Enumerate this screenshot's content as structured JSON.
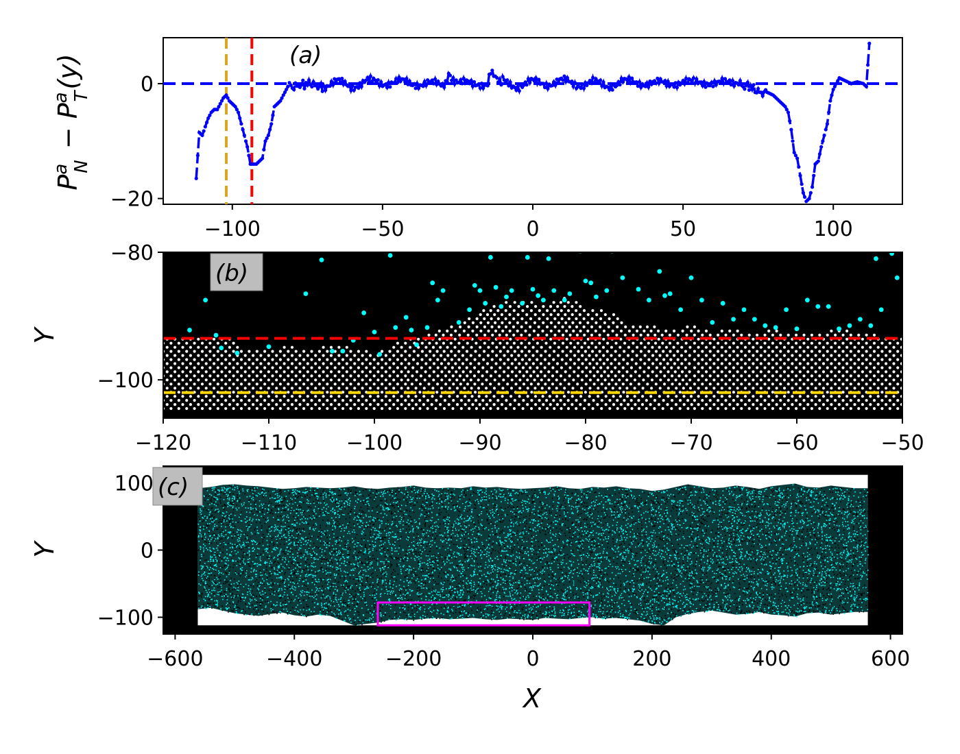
{
  "chart_data": [
    {
      "panel": "a",
      "type": "line",
      "panel_label": "(a)",
      "ylabel": "P_N^a − P_T^a(y)",
      "xlabel": "",
      "xlim": [
        -123,
        123
      ],
      "ylim": [
        -21,
        8
      ],
      "xticks": [
        -100,
        -50,
        0,
        50,
        100
      ],
      "yticks": [
        -20,
        0
      ],
      "grid": false,
      "series": [
        {
          "color": "#0000ff",
          "style": "dashed-with-dots",
          "x": [
            -112,
            -111,
            -110,
            -109,
            -108,
            -107,
            -106,
            -105,
            -104,
            -103,
            -102,
            -101,
            -100,
            -99,
            -98,
            -97,
            -96,
            -95,
            -94,
            -93,
            -92,
            -91,
            -90,
            -89,
            -88,
            -87,
            -86,
            -85,
            -84,
            -83,
            -82,
            -81,
            -80,
            -78,
            -76,
            -74,
            -72,
            -70,
            -65,
            -60,
            -55,
            -50,
            -45,
            -40,
            -35,
            -30,
            -28,
            -25,
            -20,
            -15,
            -14,
            -10,
            -5,
            0,
            5,
            10,
            15,
            20,
            25,
            30,
            35,
            40,
            45,
            50,
            55,
            60,
            65,
            68,
            70,
            72,
            74,
            76,
            78,
            80,
            82,
            84,
            85,
            86,
            87,
            88,
            89,
            90,
            91,
            92,
            93,
            94,
            95,
            96,
            97,
            98,
            99,
            100,
            101,
            102,
            104,
            106,
            108,
            110,
            111,
            112
          ],
          "y": [
            -16.5,
            -8.5,
            -9,
            -7.5,
            -6,
            -5,
            -4.5,
            -4.5,
            -3.5,
            -2.5,
            -2,
            -3,
            -3.5,
            -4,
            -5,
            -7,
            -9,
            -11,
            -14,
            -14,
            -14,
            -13.5,
            -13,
            -10,
            -9,
            -7,
            -4,
            -3.5,
            -3,
            -2,
            -1,
            0,
            -0.5,
            -0.3,
            0,
            0.2,
            -0.3,
            -0.5,
            0.3,
            -0.5,
            0.5,
            0,
            0.5,
            -0.2,
            0.3,
            -0.5,
            1.5,
            0.5,
            -0.3,
            0.2,
            1.8,
            0.5,
            -0.5,
            0.3,
            0,
            0.5,
            -0.2,
            0.3,
            -0.5,
            0.5,
            0,
            0.3,
            -0.2,
            0.5,
            0,
            0.3,
            0,
            0.5,
            -0.5,
            -0.3,
            -1,
            -1.5,
            -1.5,
            -2,
            -3,
            -4,
            -5,
            -8,
            -12,
            -13,
            -16,
            -19,
            -20.5,
            -20,
            -18,
            -14,
            -13.5,
            -11,
            -9,
            -7,
            -3,
            -1,
            0,
            1,
            0.5,
            0,
            0.3,
            0,
            -0.5,
            7
          ]
        }
      ],
      "reference_lines": [
        {
          "orientation": "horizontal",
          "value": 0,
          "color": "#0000ff",
          "style": "dashed"
        },
        {
          "orientation": "vertical",
          "value": -102,
          "color": "#daa520",
          "style": "dashed"
        },
        {
          "orientation": "vertical",
          "value": -93.5,
          "color": "#ff0000",
          "style": "dashed"
        }
      ]
    },
    {
      "panel": "b",
      "type": "scatter",
      "panel_label": "(b)",
      "ylabel": "Y",
      "xlabel": "",
      "xlim": [
        -120,
        -50
      ],
      "ylim": [
        -106,
        -80
      ],
      "xticks": [
        -120,
        -110,
        -100,
        -90,
        -80,
        -70,
        -60,
        -50
      ],
      "yticks": [
        -100,
        -80
      ],
      "background": "#000000",
      "grid": false,
      "surface_profile": {
        "x": [
          -120,
          -117,
          -114,
          -112,
          -110,
          -108,
          -106,
          -104,
          -102,
          -100,
          -98,
          -97,
          -96,
          -94,
          -92,
          -90,
          -88,
          -86,
          -84,
          -82,
          -80,
          -78,
          -76,
          -74,
          -72,
          -70,
          -68,
          -66,
          -64,
          -62,
          -60,
          -58,
          -56,
          -54,
          -52,
          -50
        ],
        "y": [
          -93.2,
          -93.2,
          -93,
          -95.5,
          -95,
          -94.8,
          -95.2,
          -94.5,
          -95,
          -95.8,
          -94.5,
          -93,
          -93.5,
          -92.5,
          -91,
          -89,
          -88,
          -87.5,
          -88,
          -87,
          -88.5,
          -89,
          -91,
          -91.5,
          -92,
          -91.5,
          -92.5,
          -92,
          -92.8,
          -92,
          -93,
          -92.5,
          -92,
          -92.8,
          -93,
          -93
        ]
      },
      "crystal_bottom": -104.5,
      "series": [
        {
          "name_visible": false,
          "color": "#ffffff",
          "marker": "circle",
          "description_hidden": true
        },
        {
          "name_visible": false,
          "color": "#00ffff",
          "marker": "circle",
          "x": [
            -117.5,
            -116,
            -115,
            -114.5,
            -113,
            -110,
            -106.5,
            -105,
            -103,
            -101,
            -99.5,
            -98.5,
            -97,
            -96.5,
            -95,
            -94.5,
            -94,
            -93.5,
            -92,
            -91,
            -90,
            -89.5,
            -89,
            -88.5,
            -88,
            -87.5,
            -87,
            -86,
            -85.5,
            -85,
            -84,
            -83.5,
            -83,
            -82,
            -81.5,
            -80.5,
            -80,
            -79,
            -78,
            -77.5,
            -76.5,
            -75,
            -74,
            -73,
            -72,
            -71,
            -70,
            -69,
            -68,
            -67,
            -66,
            -65,
            -64,
            -63,
            -62,
            -61,
            -60,
            -59,
            -58,
            -57,
            -56,
            -55,
            -54,
            -53,
            -52.5,
            -52,
            -51,
            -50.5,
            -104,
            -102,
            -100,
            -98,
            -96,
            -90.5,
            -84.5,
            -79.5,
            -72.5
          ],
          "y": [
            -92.2,
            -87.5,
            -93,
            -95,
            -95.8,
            -94.8,
            -86.5,
            -81.2,
            -95.5,
            -89.5,
            -96,
            -80.5,
            -90.2,
            -92.2,
            -91.8,
            -84.8,
            -87.5,
            -86,
            -91,
            -89,
            -86,
            -88,
            -80.8,
            -85.5,
            -88.5,
            -87,
            -86,
            -88,
            -80.8,
            -85.8,
            -87.5,
            -81,
            -86,
            -87.5,
            -86.5,
            -79.8,
            -84.5,
            -87,
            -86,
            -79.8,
            -84,
            -85.8,
            -87.5,
            -83,
            -86.5,
            -89,
            -84,
            -87.5,
            -91,
            -88,
            -90.5,
            -89,
            -90.5,
            -91.5,
            -91.8,
            -89,
            -92,
            -87.5,
            -88.5,
            -88.5,
            -92,
            -91.5,
            -90.5,
            -91.5,
            -81,
            -89,
            -80.2,
            -84,
            -95.5,
            -93.8,
            -92.5,
            -91.8,
            -94.5,
            -85.2,
            -86.8,
            -84.8,
            -86.8
          ]
        }
      ],
      "reference_lines": [
        {
          "orientation": "horizontal",
          "value": -93.5,
          "color": "#ff0000",
          "style": "dashed"
        },
        {
          "orientation": "horizontal",
          "value": -102,
          "color": "#ffd700",
          "style": "dashed"
        }
      ]
    },
    {
      "panel": "c",
      "type": "scatter",
      "panel_label": "(c)",
      "ylabel": "Y",
      "xlabel": "X",
      "xlim": [
        -620,
        620
      ],
      "ylim": [
        -125,
        125
      ],
      "xticks": [
        -600,
        -400,
        -200,
        0,
        200,
        400,
        600
      ],
      "yticks": [
        -100,
        0,
        100
      ],
      "background": "#000000",
      "grid": false,
      "slab": {
        "x_range": [
          -562,
          562
        ],
        "y_range": [
          -112,
          112
        ]
      },
      "top_surface": {
        "x": [
          -562,
          -540,
          -520,
          -500,
          -480,
          -460,
          -440,
          -420,
          -400,
          -380,
          -360,
          -340,
          -320,
          -300,
          -280,
          -260,
          -240,
          -220,
          -200,
          -180,
          -160,
          -140,
          -120,
          -100,
          -80,
          -60,
          -40,
          -20,
          0,
          20,
          40,
          60,
          80,
          100,
          120,
          140,
          160,
          180,
          200,
          220,
          240,
          260,
          280,
          300,
          320,
          340,
          360,
          380,
          400,
          420,
          440,
          460,
          480,
          500,
          520,
          540,
          562
        ],
        "y": [
          92,
          94,
          97,
          98,
          96,
          95,
          93,
          91,
          92,
          94,
          93,
          92,
          93,
          95,
          92,
          91,
          93,
          94,
          96,
          93,
          92,
          93,
          92,
          95,
          93,
          94,
          92,
          91,
          92,
          93,
          95,
          92,
          91,
          94,
          93,
          95,
          92,
          91,
          88,
          90,
          94,
          98,
          95,
          92,
          93,
          96,
          94,
          91,
          95,
          97,
          99,
          94,
          93,
          96,
          94,
          92,
          92
        ]
      },
      "bottom_surface": {
        "x": [
          -562,
          -540,
          -520,
          -500,
          -480,
          -460,
          -440,
          -420,
          -400,
          -380,
          -360,
          -340,
          -320,
          -300,
          -280,
          -260,
          -240,
          -220,
          -200,
          -180,
          -160,
          -140,
          -120,
          -100,
          -80,
          -60,
          -40,
          -20,
          0,
          20,
          40,
          60,
          80,
          100,
          120,
          140,
          160,
          180,
          200,
          220,
          240,
          260,
          280,
          300,
          320,
          340,
          360,
          380,
          400,
          420,
          440,
          460,
          480,
          500,
          520,
          540,
          562
        ],
        "y": [
          -88,
          -86,
          -90,
          -94,
          -96,
          -98,
          -95,
          -93,
          -97,
          -99,
          -96,
          -98,
          -105,
          -112,
          -110,
          -108,
          -104,
          -103,
          -104,
          -102,
          -101,
          -103,
          -102,
          -101,
          -103,
          -104,
          -102,
          -103,
          -104,
          -101,
          -102,
          -103,
          -101,
          -100,
          -102,
          -101,
          -103,
          -105,
          -110,
          -112,
          -100,
          -95,
          -92,
          -90,
          -93,
          -96,
          -95,
          -92,
          -96,
          -97,
          -99,
          -94,
          -93,
          -96,
          -94,
          -92,
          -92
        ]
      },
      "density": {
        "points": 14000,
        "colors": [
          "#00ffff",
          "#000000"
        ]
      },
      "highlight_box": {
        "x": [
          -260,
          95
        ],
        "y": [
          -112,
          -78
        ],
        "color": "#ff00ff"
      }
    }
  ]
}
